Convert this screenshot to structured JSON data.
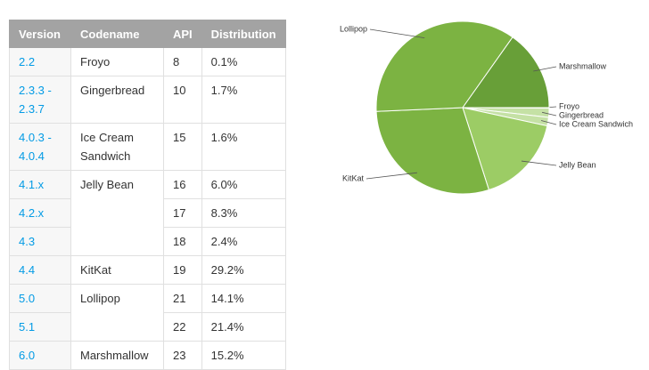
{
  "table": {
    "header": [
      "Version",
      "Codename",
      "API",
      "Distribution"
    ],
    "rows": [
      {
        "version": "2.2",
        "codename": "Froyo",
        "api": "8",
        "distribution": "0.1%"
      },
      {
        "version": "2.3.3 - 2.3.7",
        "codename": "Gingerbread",
        "api": "10",
        "distribution": "1.7%"
      },
      {
        "version": "4.0.3 - 4.0.4",
        "codename": "Ice Cream Sandwich",
        "api": "15",
        "distribution": "1.6%"
      },
      {
        "version": "4.1.x",
        "codename": "Jelly Bean",
        "api": "16",
        "distribution": "6.0%"
      },
      {
        "version": "4.2.x",
        "api": "17",
        "distribution": "8.3%"
      },
      {
        "version": "4.3",
        "api": "18",
        "distribution": "2.4%"
      },
      {
        "version": "4.4",
        "codename": "KitKat",
        "api": "19",
        "distribution": "29.2%"
      },
      {
        "version": "5.0",
        "codename": "Lollipop",
        "api": "21",
        "distribution": "14.1%"
      },
      {
        "version": "5.1",
        "api": "22",
        "distribution": "21.4%"
      },
      {
        "version": "6.0",
        "codename": "Marshmallow",
        "api": "23",
        "distribution": "15.2%"
      }
    ]
  },
  "chart_data": {
    "type": "pie",
    "categories": [
      "Froyo",
      "Gingerbread",
      "Ice Cream Sandwich",
      "Jelly Bean",
      "KitKat",
      "Lollipop",
      "Marshmallow"
    ],
    "values": [
      0.1,
      1.7,
      1.6,
      16.7,
      29.2,
      35.5,
      15.2
    ],
    "colors": [
      "#c5e1a5",
      "#c5e1a5",
      "#c5e1a5",
      "#9ccc65",
      "#7cb342",
      "#7cb342",
      "#689f38"
    ]
  }
}
